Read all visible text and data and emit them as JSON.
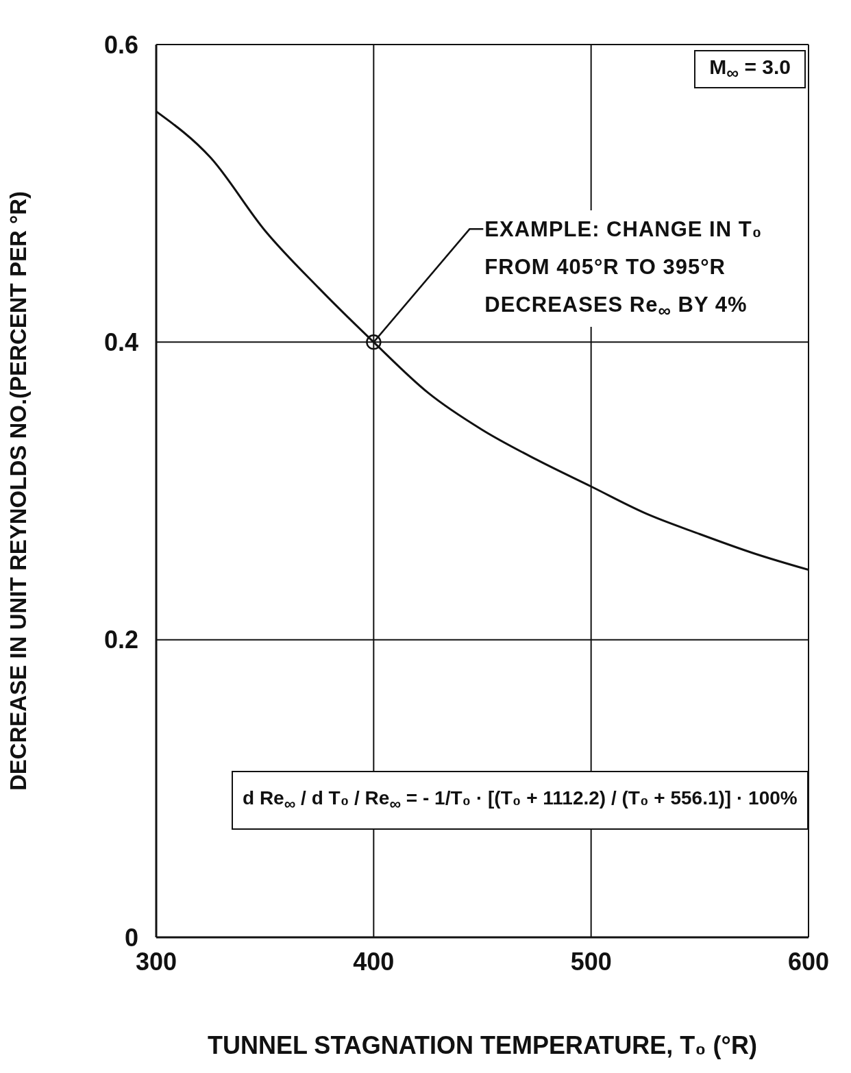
{
  "chart_data": {
    "type": "line",
    "xlabel": "TUNNEL STAGNATION TEMPERATURE, T₀ (°R)",
    "ylabel": "DECREASE IN UNIT REYNOLDS NO.(PERCENT PER °R)",
    "x": [
      300,
      325,
      350,
      375,
      400,
      425,
      450,
      475,
      500,
      525,
      550,
      575,
      600
    ],
    "series": [
      {
        "color": "#111111",
        "values": [
          0.555,
          0.524,
          0.475,
          0.436,
          0.4,
          0.366,
          0.341,
          0.321,
          0.303,
          0.285,
          0.271,
          0.258,
          0.247
        ]
      }
    ],
    "xlim": [
      300,
      600
    ],
    "xticks": [
      300,
      400,
      500,
      600
    ],
    "ylim": [
      0,
      0.6
    ],
    "yticks": [
      0,
      0.2,
      0.4,
      0.6
    ],
    "grid": true,
    "marker": "none",
    "line_style": "solid",
    "annotations": [
      "M$_{∞}$ = 3.0",
      {
        "text": "EXAMPLE: CHANGE IN T₀ FROM 405°R TO 395°R DECREASES Re$_{∞}$ BY 4%",
        "x": 400,
        "y": 0.4
      },
      "d Re$_{∞}$ / d T₀ / Re$_{∞}$ = - 1/T₀ · [(T₀ + 1112.2) / (T₀ + 556.1)] · 100%"
    ]
  }
}
